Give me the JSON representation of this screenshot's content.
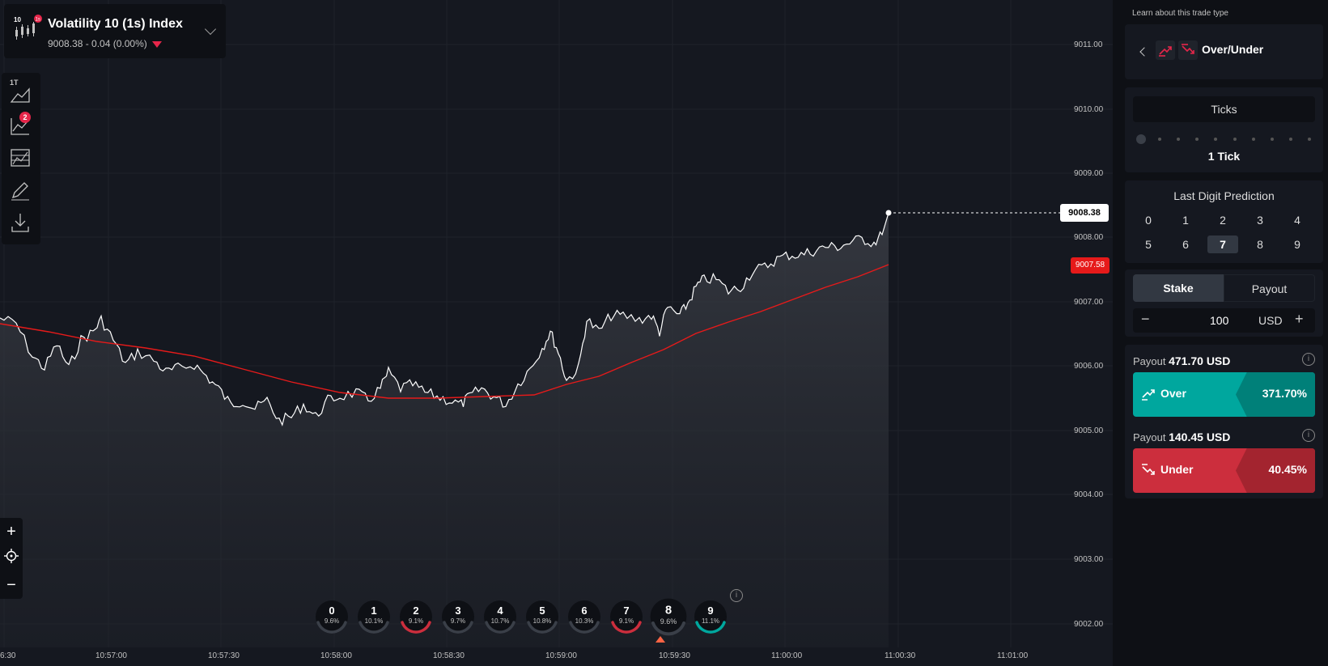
{
  "symbol": {
    "title": "Volatility 10 (1s) Index",
    "price_change": "9008.38 - 0.04 (0.00%)",
    "icon_top_left": "10",
    "icon_badge": "1s"
  },
  "toolbar": {
    "tick_label": "1T",
    "indicator_badge": "2",
    "tools": [
      "chart-type-icon",
      "indicators-icon",
      "templates-icon",
      "drawing-icon",
      "download-icon"
    ]
  },
  "zoom": {
    "plus": "+",
    "minus": "−"
  },
  "price_axis": {
    "labels": [
      "9011.00",
      "9010.00",
      "9009.00",
      "9008.00",
      "9007.00",
      "9006.00",
      "9005.00",
      "9004.00",
      "9003.00",
      "9002.00"
    ],
    "current": "9008.38",
    "ma": "9007.58"
  },
  "time_axis": [
    "6:30",
    "10:57:00",
    "10:57:30",
    "10:58:00",
    "10:58:30",
    "10:59:00",
    "10:59:30",
    "11:00:00",
    "11:00:30",
    "11:01:00"
  ],
  "digit_stats": [
    {
      "digit": "0",
      "pct": "9.6%",
      "arc": "none"
    },
    {
      "digit": "1",
      "pct": "10.1%",
      "arc": "none"
    },
    {
      "digit": "2",
      "pct": "9.1%",
      "arc": "red"
    },
    {
      "digit": "3",
      "pct": "9.7%",
      "arc": "none"
    },
    {
      "digit": "4",
      "pct": "10.7%",
      "arc": "none"
    },
    {
      "digit": "5",
      "pct": "10.8%",
      "arc": "none"
    },
    {
      "digit": "6",
      "pct": "10.3%",
      "arc": "none"
    },
    {
      "digit": "7",
      "pct": "9.1%",
      "arc": "red"
    },
    {
      "digit": "8",
      "pct": "9.6%",
      "arc": "none"
    },
    {
      "digit": "9",
      "pct": "11.1%",
      "arc": "green"
    }
  ],
  "colors": {
    "price_line": "#ffffff",
    "ma_line": "#e61a1a",
    "over": "#00a79e",
    "under": "#cc2e3d"
  },
  "panel": {
    "learn_link": "Learn about this trade type",
    "trade_type": "Over/Under",
    "ticks_title": "Ticks",
    "ticks_value": "1 Tick",
    "digit_title": "Last Digit Prediction",
    "digits": [
      "0",
      "1",
      "2",
      "3",
      "4",
      "5",
      "6",
      "7",
      "8",
      "9"
    ],
    "selected_digit": "7",
    "stake_tab": "Stake",
    "payout_tab": "Payout",
    "stake_minus": "−",
    "stake_value": "100",
    "stake_currency": "USD",
    "stake_plus": "+",
    "over": {
      "payout_label": "Payout",
      "payout_value": "471.70 USD",
      "label": "Over",
      "pct": "371.70%"
    },
    "under": {
      "payout_label": "Payout",
      "payout_value": "140.45 USD",
      "label": "Under",
      "pct": "40.45%"
    }
  }
}
